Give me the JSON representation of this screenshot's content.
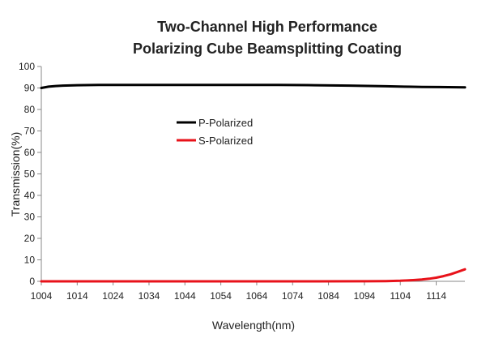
{
  "chart_data": {
    "type": "line",
    "title_lines": [
      "Two-Channel High Performance",
      "Polarizing Cube Beamsplitting Coating"
    ],
    "xlabel": "Wavelength(nm)",
    "ylabel": "Transmission(%)",
    "xlim": [
      1004,
      1122
    ],
    "ylim": [
      0,
      100
    ],
    "x_ticks": [
      1004,
      1014,
      1024,
      1034,
      1044,
      1054,
      1064,
      1074,
      1084,
      1094,
      1104,
      1114
    ],
    "y_ticks": [
      0,
      10,
      20,
      30,
      40,
      50,
      60,
      70,
      80,
      90,
      100
    ],
    "grid": false,
    "legend_position": "center-left",
    "series": [
      {
        "name": "P-Polarized",
        "color": "#000000",
        "x": [
          1004,
          1006,
          1008,
          1010,
          1014,
          1020,
          1030,
          1040,
          1050,
          1060,
          1070,
          1080,
          1090,
          1100,
          1105,
          1110,
          1115,
          1122
        ],
        "y": [
          90.0,
          90.6,
          90.9,
          91.1,
          91.3,
          91.4,
          91.4,
          91.4,
          91.4,
          91.4,
          91.4,
          91.3,
          91.1,
          90.8,
          90.6,
          90.5,
          90.4,
          90.3
        ]
      },
      {
        "name": "S-Polarized",
        "color": "#e8121a",
        "x": [
          1004,
          1020,
          1040,
          1060,
          1080,
          1095,
          1100,
          1104,
          1106,
          1108,
          1110,
          1112,
          1114,
          1116,
          1118,
          1120,
          1122
        ],
        "y": [
          0.0,
          0.0,
          0.0,
          0.0,
          0.0,
          0.05,
          0.1,
          0.25,
          0.4,
          0.6,
          0.85,
          1.2,
          1.7,
          2.4,
          3.3,
          4.4,
          5.6
        ]
      }
    ]
  }
}
